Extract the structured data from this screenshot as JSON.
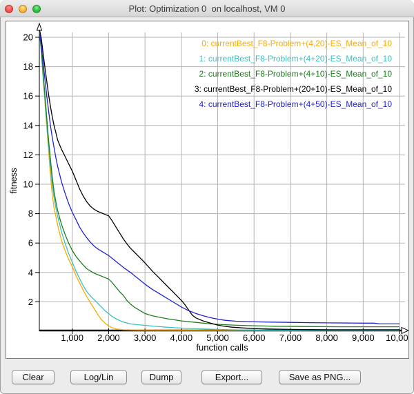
{
  "window": {
    "title": "Plot: Optimization 0  on localhost, VM 0"
  },
  "toolbar": {
    "buttons": [
      {
        "label": "Clear"
      },
      {
        "label": "Log/Lin"
      },
      {
        "label": "Dump"
      },
      {
        "label": "Export..."
      },
      {
        "label": "Save as PNG..."
      }
    ]
  },
  "chart_data": {
    "type": "line",
    "title": "",
    "xlabel": "function calls",
    "ylabel": "fitness",
    "xlim": [
      0,
      10000
    ],
    "ylim": [
      0,
      21
    ],
    "grid": true,
    "legend_position": "top-right",
    "x_ticks": [
      1000,
      2000,
      3000,
      4000,
      5000,
      6000,
      7000,
      8000,
      9000,
      10000
    ],
    "x_tick_labels": [
      "1,000",
      "2,000",
      "3,000",
      "4,000",
      "5,000",
      "6,000",
      "7,000",
      "8,000",
      "9,000",
      "10,000"
    ],
    "y_ticks": [
      2,
      4,
      6,
      8,
      10,
      12,
      14,
      16,
      18,
      20
    ],
    "y_tick_labels": [
      "2",
      "4",
      "6",
      "8",
      "10",
      "12",
      "14",
      "16",
      "18",
      "20"
    ],
    "grid_color": "#b3b3b3",
    "axis_color": "#000000",
    "series": [
      {
        "name": "0: currentBest_F8-Problem+(4,20)-ES_Mean_of_10",
        "color": "#f7ab00",
        "points": [
          [
            100,
            20.4
          ],
          [
            150,
            19.0
          ],
          [
            200,
            17.2
          ],
          [
            250,
            15.5
          ],
          [
            300,
            13.9
          ],
          [
            350,
            12.3
          ],
          [
            400,
            10.6
          ],
          [
            450,
            9.3
          ],
          [
            500,
            8.4
          ],
          [
            550,
            7.8
          ],
          [
            600,
            7.2
          ],
          [
            700,
            6.2
          ],
          [
            800,
            5.5
          ],
          [
            900,
            4.9
          ],
          [
            1000,
            4.4
          ],
          [
            1100,
            3.8
          ],
          [
            1200,
            3.3
          ],
          [
            1300,
            2.8
          ],
          [
            1400,
            2.35
          ],
          [
            1500,
            1.95
          ],
          [
            1600,
            1.55
          ],
          [
            1700,
            1.15
          ],
          [
            1800,
            0.8
          ],
          [
            1900,
            0.55
          ],
          [
            2000,
            0.38
          ],
          [
            2100,
            0.24
          ],
          [
            2200,
            0.15
          ],
          [
            2400,
            0.1
          ],
          [
            2800,
            0.08
          ],
          [
            4000,
            0.06
          ],
          [
            6000,
            0.05
          ],
          [
            10000,
            0.05
          ]
        ]
      },
      {
        "name": "1: currentBest_F8-Problem+(4+20)-ES_Mean_of_10",
        "color": "#3dbfbf",
        "points": [
          [
            100,
            20.3
          ],
          [
            150,
            19.0
          ],
          [
            200,
            17.3
          ],
          [
            250,
            15.7
          ],
          [
            300,
            14.1
          ],
          [
            350,
            12.6
          ],
          [
            400,
            11.2
          ],
          [
            450,
            10.0
          ],
          [
            500,
            9.1
          ],
          [
            550,
            8.4
          ],
          [
            600,
            7.8
          ],
          [
            700,
            6.8
          ],
          [
            800,
            6.0
          ],
          [
            900,
            5.3
          ],
          [
            1000,
            4.7
          ],
          [
            1100,
            4.1
          ],
          [
            1200,
            3.6
          ],
          [
            1300,
            3.1
          ],
          [
            1400,
            2.7
          ],
          [
            1500,
            2.4
          ],
          [
            1600,
            2.15
          ],
          [
            1700,
            1.9
          ],
          [
            1800,
            1.65
          ],
          [
            1900,
            1.4
          ],
          [
            2000,
            1.2
          ],
          [
            2100,
            1.0
          ],
          [
            2200,
            0.85
          ],
          [
            2400,
            0.62
          ],
          [
            2600,
            0.5
          ],
          [
            2800,
            0.44
          ],
          [
            3000,
            0.4
          ],
          [
            3300,
            0.33
          ],
          [
            3600,
            0.27
          ],
          [
            4000,
            0.21
          ],
          [
            4400,
            0.17
          ],
          [
            5000,
            0.12
          ],
          [
            5600,
            0.09
          ],
          [
            6400,
            0.07
          ],
          [
            7000,
            0.06
          ],
          [
            10000,
            0.06
          ]
        ]
      },
      {
        "name": "2: currentBest_F8-Problem+(4+10)-ES_Mean_of_10",
        "color": "#1f7d1f",
        "points": [
          [
            100,
            20.4
          ],
          [
            150,
            19.2
          ],
          [
            200,
            17.6
          ],
          [
            250,
            16.0
          ],
          [
            300,
            14.5
          ],
          [
            350,
            13.0
          ],
          [
            400,
            11.7
          ],
          [
            450,
            10.5
          ],
          [
            500,
            9.5
          ],
          [
            550,
            8.8
          ],
          [
            600,
            8.2
          ],
          [
            700,
            7.3
          ],
          [
            800,
            6.6
          ],
          [
            900,
            6.0
          ],
          [
            1000,
            5.5
          ],
          [
            1100,
            5.1
          ],
          [
            1200,
            4.8
          ],
          [
            1300,
            4.5
          ],
          [
            1400,
            4.25
          ],
          [
            1500,
            4.1
          ],
          [
            1600,
            3.95
          ],
          [
            1700,
            3.85
          ],
          [
            1800,
            3.75
          ],
          [
            1900,
            3.65
          ],
          [
            2000,
            3.55
          ],
          [
            2100,
            3.3
          ],
          [
            2200,
            3.0
          ],
          [
            2300,
            2.7
          ],
          [
            2400,
            2.45
          ],
          [
            2500,
            2.1
          ],
          [
            2600,
            1.85
          ],
          [
            2700,
            1.65
          ],
          [
            2800,
            1.5
          ],
          [
            3000,
            1.2
          ],
          [
            3200,
            1.05
          ],
          [
            3400,
            0.95
          ],
          [
            3600,
            0.85
          ],
          [
            3800,
            0.78
          ],
          [
            4000,
            0.7
          ],
          [
            4400,
            0.6
          ],
          [
            4800,
            0.5
          ],
          [
            5200,
            0.44
          ],
          [
            5600,
            0.4
          ],
          [
            6000,
            0.37
          ],
          [
            6600,
            0.34
          ],
          [
            7400,
            0.32
          ],
          [
            8400,
            0.3
          ],
          [
            10000,
            0.3
          ]
        ]
      },
      {
        "name": "3: currentBest_F8-Problem+(20+10)-ES_Mean_of_10",
        "color": "#000000",
        "points": [
          [
            100,
            20.5
          ],
          [
            150,
            19.9
          ],
          [
            200,
            18.9
          ],
          [
            250,
            17.9
          ],
          [
            300,
            17.0
          ],
          [
            350,
            16.1
          ],
          [
            400,
            15.3
          ],
          [
            450,
            14.6
          ],
          [
            500,
            14.0
          ],
          [
            550,
            13.5
          ],
          [
            600,
            13.0
          ],
          [
            700,
            12.4
          ],
          [
            800,
            11.9
          ],
          [
            900,
            11.4
          ],
          [
            1000,
            10.9
          ],
          [
            1100,
            10.3
          ],
          [
            1200,
            9.7
          ],
          [
            1300,
            9.2
          ],
          [
            1400,
            8.8
          ],
          [
            1500,
            8.5
          ],
          [
            1600,
            8.3
          ],
          [
            1700,
            8.15
          ],
          [
            1800,
            8.05
          ],
          [
            1900,
            7.95
          ],
          [
            2000,
            7.85
          ],
          [
            2100,
            7.5
          ],
          [
            2200,
            7.1
          ],
          [
            2300,
            6.7
          ],
          [
            2400,
            6.3
          ],
          [
            2500,
            5.95
          ],
          [
            2600,
            5.65
          ],
          [
            2700,
            5.4
          ],
          [
            2800,
            5.15
          ],
          [
            2900,
            4.9
          ],
          [
            3000,
            4.65
          ],
          [
            3200,
            4.1
          ],
          [
            3400,
            3.6
          ],
          [
            3600,
            3.1
          ],
          [
            3800,
            2.6
          ],
          [
            4000,
            2.1
          ],
          [
            4100,
            1.8
          ],
          [
            4200,
            1.45
          ],
          [
            4300,
            1.1
          ],
          [
            4400,
            0.9
          ],
          [
            4600,
            0.7
          ],
          [
            4800,
            0.55
          ],
          [
            5000,
            0.42
          ],
          [
            5200,
            0.33
          ],
          [
            5400,
            0.27
          ],
          [
            5700,
            0.22
          ],
          [
            6000,
            0.18
          ],
          [
            6400,
            0.15
          ],
          [
            7000,
            0.12
          ],
          [
            8000,
            0.1
          ],
          [
            10000,
            0.1
          ]
        ]
      },
      {
        "name": "4: currentBest_F8-Problem+(4+50)-ES_Mean_of_10",
        "color": "#2222cc",
        "points": [
          [
            100,
            20.3
          ],
          [
            150,
            19.4
          ],
          [
            200,
            18.3
          ],
          [
            250,
            17.1
          ],
          [
            300,
            16.0
          ],
          [
            350,
            15.0
          ],
          [
            400,
            14.0
          ],
          [
            450,
            13.2
          ],
          [
            500,
            12.5
          ],
          [
            550,
            11.8
          ],
          [
            600,
            11.2
          ],
          [
            700,
            10.2
          ],
          [
            800,
            9.4
          ],
          [
            900,
            8.7
          ],
          [
            1000,
            8.1
          ],
          [
            1100,
            7.6
          ],
          [
            1200,
            7.1
          ],
          [
            1300,
            6.7
          ],
          [
            1400,
            6.35
          ],
          [
            1500,
            6.05
          ],
          [
            1600,
            5.8
          ],
          [
            1700,
            5.6
          ],
          [
            1800,
            5.45
          ],
          [
            1900,
            5.3
          ],
          [
            2000,
            5.15
          ],
          [
            2200,
            4.75
          ],
          [
            2400,
            4.35
          ],
          [
            2600,
            4.0
          ],
          [
            2800,
            3.6
          ],
          [
            3000,
            3.2
          ],
          [
            3200,
            2.85
          ],
          [
            3400,
            2.55
          ],
          [
            3600,
            2.25
          ],
          [
            3800,
            1.95
          ],
          [
            4000,
            1.65
          ],
          [
            4200,
            1.4
          ],
          [
            4400,
            1.2
          ],
          [
            4600,
            1.05
          ],
          [
            4800,
            0.92
          ],
          [
            5000,
            0.82
          ],
          [
            5200,
            0.74
          ],
          [
            5500,
            0.68
          ],
          [
            6000,
            0.64
          ],
          [
            6500,
            0.62
          ],
          [
            7000,
            0.6
          ],
          [
            7500,
            0.58
          ],
          [
            8000,
            0.57
          ],
          [
            9000,
            0.55
          ],
          [
            9300,
            0.55
          ],
          [
            9450,
            0.5
          ],
          [
            10000,
            0.5
          ]
        ]
      }
    ]
  }
}
